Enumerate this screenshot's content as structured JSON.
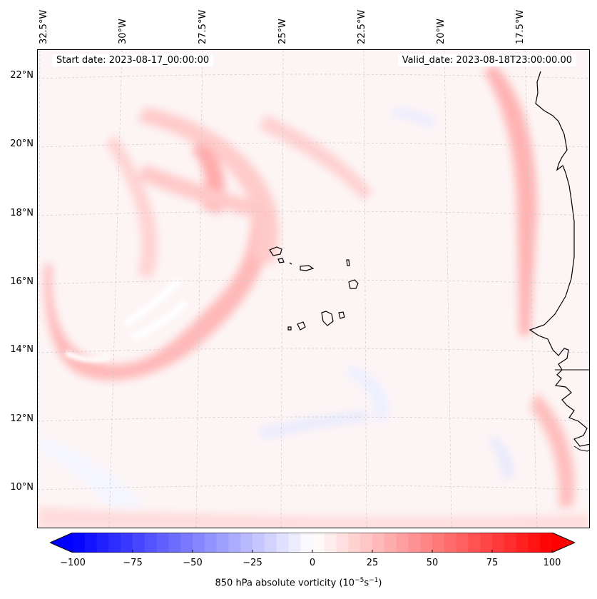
{
  "map": {
    "start_date": "Start date: 2023-08-17_00:00:00",
    "valid_date": "Valid_date: 2023-08-18T23:00:00.00",
    "lon_labels": [
      "32.5°W",
      "30°W",
      "27.5°W",
      "25°W",
      "22.5°W",
      "20°W",
      "17.5°W"
    ],
    "lat_labels": [
      "22°N",
      "20°N",
      "18°N",
      "16°N",
      "14°N",
      "12°N",
      "10°N"
    ],
    "field": "850 hPa absolute vorticity",
    "islands": "Cape Verde Islands",
    "coastline": "West Africa"
  },
  "colorbar": {
    "label_prefix": "850 hPa absolute vorticity (10",
    "label_exp1": "−5",
    "label_mid": "s",
    "label_exp2": "−1",
    "label_suffix": ")",
    "ticks": [
      "−100",
      "−75",
      "−50",
      "−25",
      "0",
      "25",
      "50",
      "75",
      "100"
    ],
    "min": -100,
    "max": 100,
    "neg_color": "#0000ff",
    "pos_color": "#ff0000"
  }
}
